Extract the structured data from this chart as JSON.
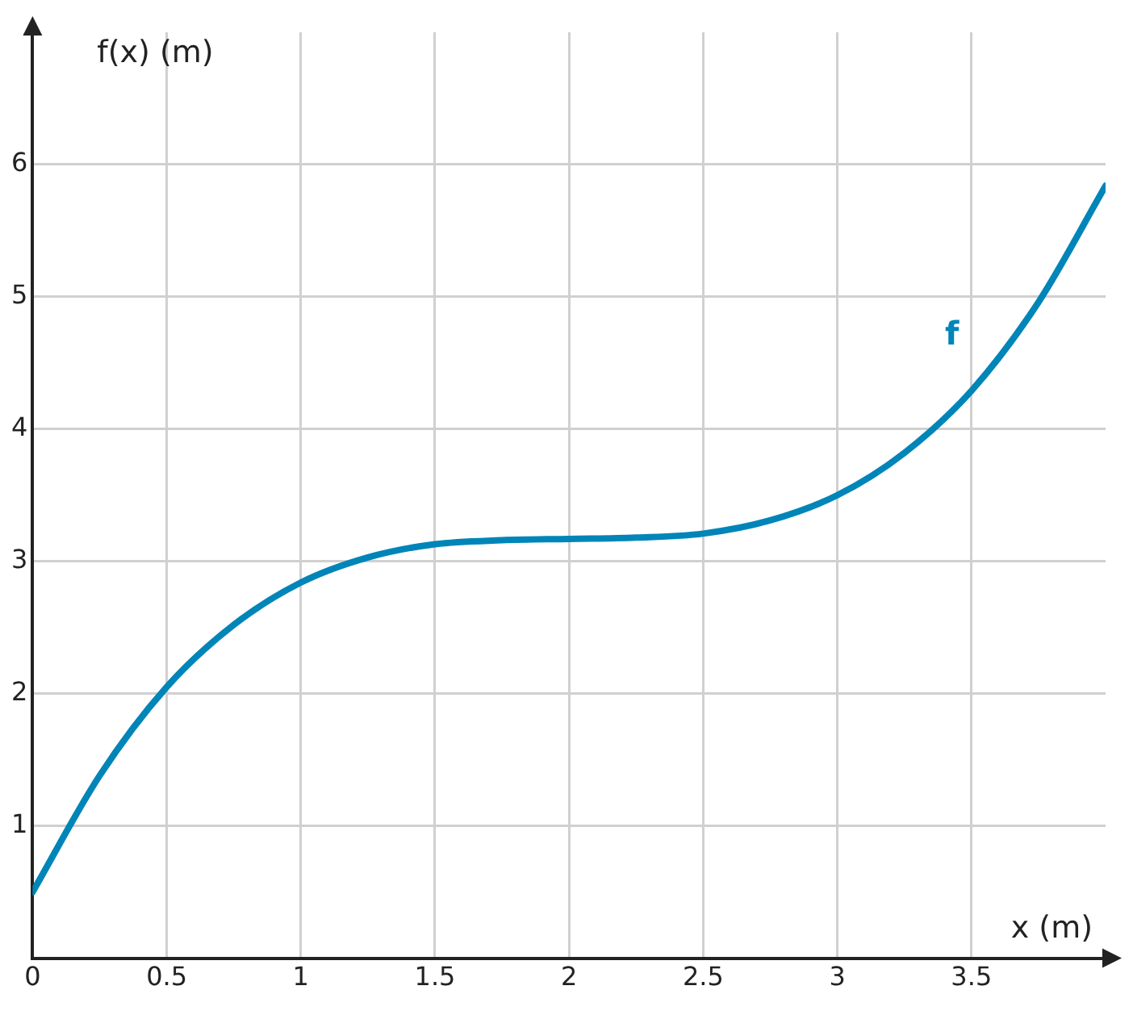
{
  "chart_data": {
    "type": "line",
    "xlabel": "x (m)",
    "ylabel": "f(x) (m)",
    "xlim": [
      0,
      4
    ],
    "ylim": [
      0,
      7
    ],
    "xticks": [
      0,
      0.5,
      1,
      1.5,
      2,
      2.5,
      3,
      3.5
    ],
    "yticks": [
      {
        "value": 0,
        "label": null
      },
      1,
      2,
      3,
      4,
      5,
      6
    ],
    "grid": true,
    "legend": false,
    "marker": "none",
    "line_style": "solid",
    "series": [
      {
        "name": "f",
        "color": "#0085b8",
        "x": [
          0,
          0.25,
          0.5,
          0.75,
          1,
          1.25,
          1.5,
          1.75,
          2,
          2.25,
          2.5,
          2.75,
          3,
          3.25,
          3.5,
          3.75,
          4
        ],
        "values": [
          0.5,
          1.38,
          2.05,
          2.52,
          2.84,
          3.03,
          3.13,
          3.16,
          3.17,
          3.18,
          3.21,
          3.31,
          3.5,
          3.82,
          4.29,
          4.96,
          5.84
        ]
      }
    ]
  }
}
